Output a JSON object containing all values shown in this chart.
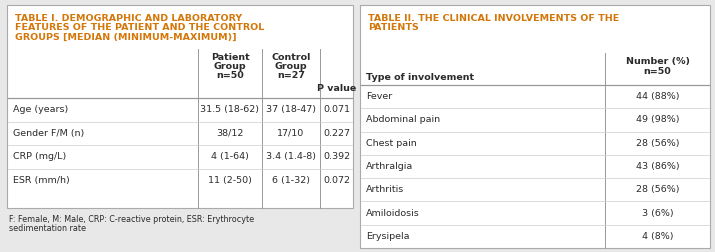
{
  "bg_color": "#f7f7f7",
  "box_bg": "#ffffff",
  "border_color": "#aaaaaa",
  "title_color": "#d4770a",
  "text_color": "#2b2b2b",
  "line_color": "#999999",
  "light_line_color": "#cccccc",
  "outer_bg": "#e8e8e8",
  "table1": {
    "title_lines": [
      "TABLE I. DEMOGRAPHIC AND LABORATORY",
      "FEATURES OF THE PATIENT AND THE CONTROL",
      "GROUPS [MEDIAN (MINIMUM-MAXIMUM)]"
    ],
    "col_headers": [
      "",
      "Patient\nGroup\nn=50",
      "Control\nGroup\nn=27",
      "P value"
    ],
    "rows": [
      [
        "Age (years)",
        "31.5 (18-62)",
        "37 (18-47)",
        "0.071"
      ],
      [
        "Gender F/M (n)",
        "38/12",
        "17/10",
        "0.227"
      ],
      [
        "CRP (mg/L)",
        "4 (1-64)",
        "3.4 (1.4-8)",
        "0.392"
      ],
      [
        "ESR (mm/h)",
        "11 (2-50)",
        "6 (1-32)",
        "0.072"
      ]
    ],
    "footnote_lines": [
      "F: Female, M: Male, CRP: C-reactive protein, ESR: Erythrocyte",
      "sedimentation rate"
    ]
  },
  "table2": {
    "title_lines": [
      "TABLE II. THE CLINICAL INVOLVEMENTS OF THE",
      "PATIENTS"
    ],
    "col_headers": [
      "Type of involvement",
      "Number (%)\nn=50"
    ],
    "rows": [
      [
        "Fever",
        "44 (88%)"
      ],
      [
        "Abdominal pain",
        "49 (98%)"
      ],
      [
        "Chest pain",
        "28 (56%)"
      ],
      [
        "Arthralgia",
        "43 (86%)"
      ],
      [
        "Arthritis",
        "28 (56%)"
      ],
      [
        "Amiloidosis",
        "3 (6%)"
      ],
      [
        "Erysipela",
        "4 (8%)"
      ]
    ]
  }
}
